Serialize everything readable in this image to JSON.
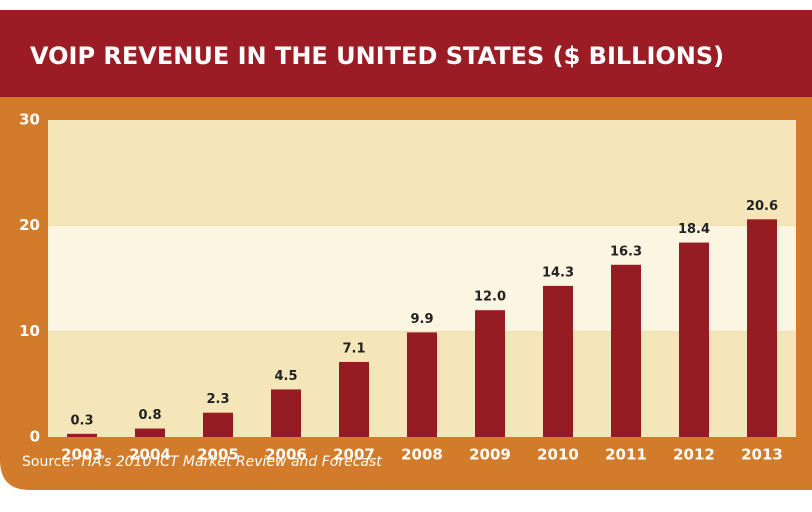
{
  "chart_data": {
    "type": "bar",
    "title": "VOIP REVENUE IN THE UNITED STATES ($ BILLIONS)",
    "categories": [
      "2003",
      "2004",
      "2005",
      "2006",
      "2007",
      "2008",
      "2009",
      "2010",
      "2011",
      "2012",
      "2013"
    ],
    "values": [
      0.3,
      0.8,
      2.3,
      4.5,
      7.1,
      9.9,
      12.0,
      14.3,
      16.3,
      18.4,
      20.6
    ],
    "value_labels": [
      "0.3",
      "0.8",
      "2.3",
      "4.5",
      "7.1",
      "9.9",
      "12.0",
      "14.3",
      "16.3",
      "18.4",
      "20.6"
    ],
    "color": "#951c22",
    "ylim": [
      0,
      30
    ],
    "yticks": [
      0,
      10,
      20,
      30
    ],
    "source": {
      "label": "Source:",
      "text": "TIA’s 2010 ICT Market Review and Forecast"
    }
  }
}
